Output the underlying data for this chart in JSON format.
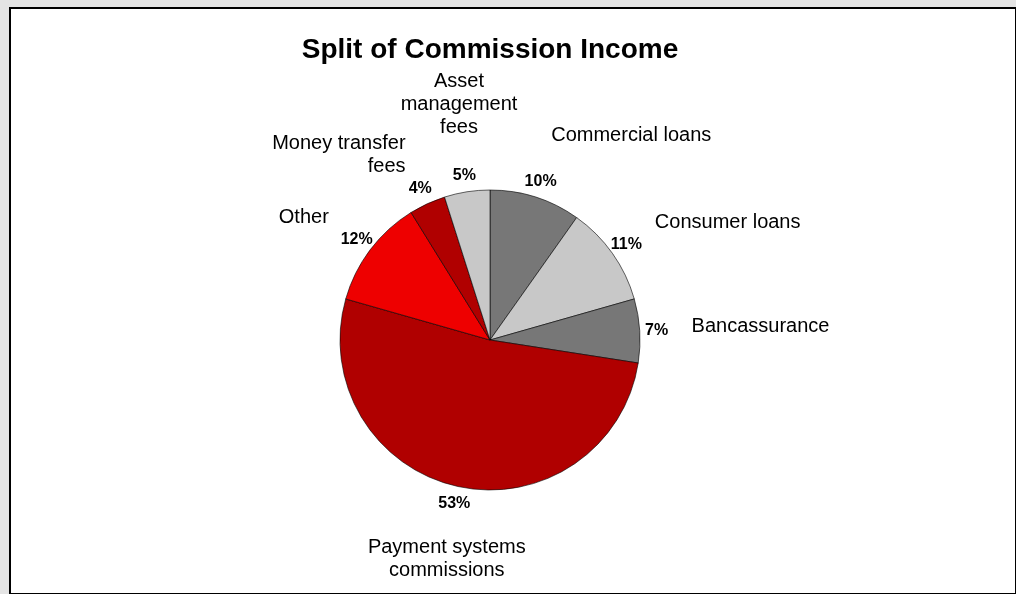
{
  "chart_data": {
    "type": "pie",
    "title": "Split of Commission Income",
    "categories": [
      "Commercial loans",
      "Consumer loans",
      "Bancassurance",
      "Payment systems commissions",
      "Other",
      "Money transfer fees",
      "Asset management fees"
    ],
    "values": [
      10,
      11,
      7,
      53,
      12,
      4,
      5
    ],
    "colors": [
      "#777777",
      "#c8c8c8",
      "#777777",
      "#b00000",
      "#ee0000",
      "#b00000",
      "#c8c8c8"
    ],
    "value_labels": [
      "10%",
      "11%",
      "7%",
      "53%",
      "12%",
      "4%",
      "5%"
    ]
  }
}
